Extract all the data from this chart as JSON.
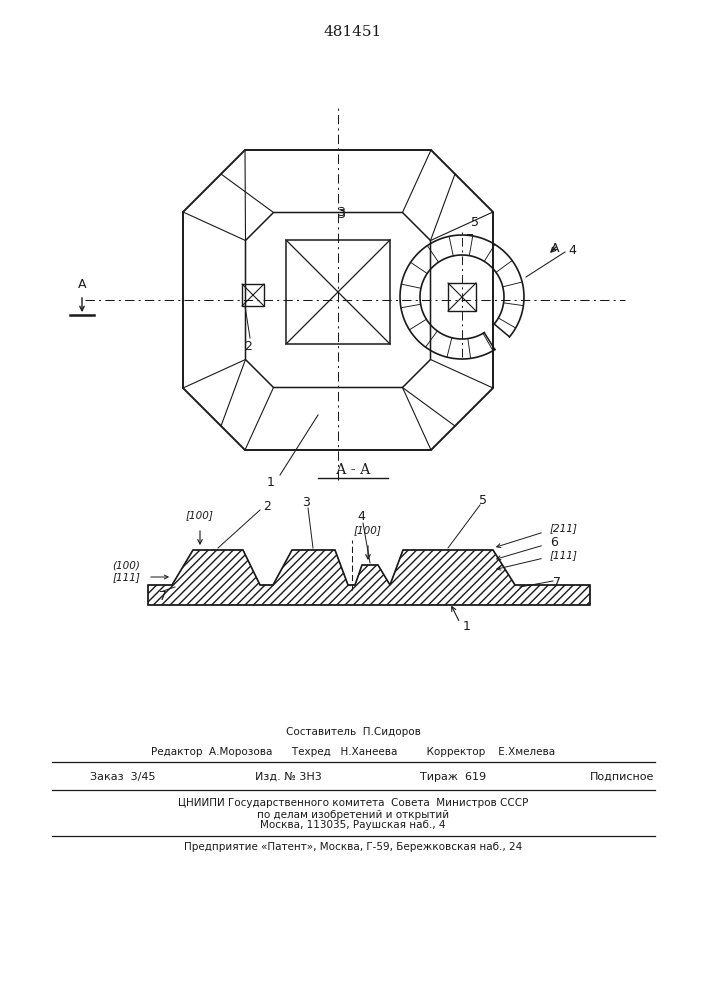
{
  "patent_number": "481451",
  "lc": "#1a1a1a",
  "fig_width": 7.07,
  "fig_height": 10.0,
  "footer": {
    "составитель": "Составитель  П.Сидоров",
    "редактор": "Редактор  А.Морозова      Техред   Н.Ханеева         Корректор    Е.Хмелева",
    "заказ": "Заказ  3/45",
    "изд": "Изд. № 3Н3",
    "тираж": "Тираж  619",
    "подписное": "Подписное",
    "цниипи1": "ЦНИИПИ Государственного комитета  Совета  Министров СССР",
    "цниипи2": "по делам изобретений и открытий",
    "цниипи3": "Москва, 113035, Раушская наб., 4",
    "предприятие": "Предприятие «Патент», Москва, Г-59, Бережковская наб., 24"
  }
}
